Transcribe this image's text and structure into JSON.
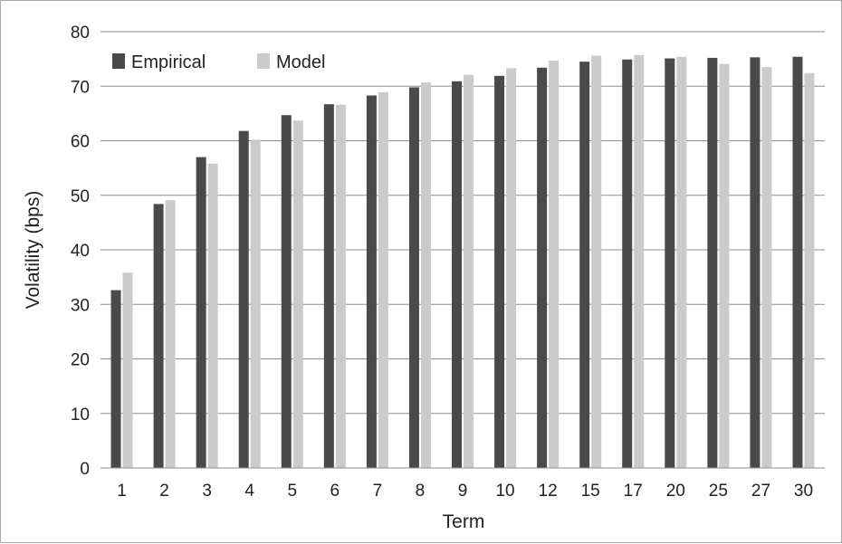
{
  "chart_data": {
    "type": "bar",
    "title": "",
    "xlabel": "Term",
    "ylabel": "Volatility (bps)",
    "ylim": [
      0,
      80
    ],
    "yticks": [
      0,
      10,
      20,
      30,
      40,
      50,
      60,
      70,
      80
    ],
    "grid": true,
    "legend_position": "top-left",
    "categories": [
      "1",
      "2",
      "3",
      "4",
      "5",
      "6",
      "7",
      "8",
      "9",
      "10",
      "12",
      "15",
      "17",
      "20",
      "25",
      "27",
      "30"
    ],
    "series": [
      {
        "name": "Empirical",
        "color": "#4a4a4a",
        "values": [
          32.6,
          48.4,
          57.0,
          61.8,
          64.7,
          66.7,
          68.3,
          69.8,
          70.9,
          71.9,
          73.4,
          74.5,
          74.9,
          75.1,
          75.2,
          75.3,
          75.4
        ]
      },
      {
        "name": "Model",
        "color": "#cbcbcb",
        "values": [
          35.8,
          49.1,
          55.8,
          60.2,
          63.7,
          66.6,
          68.9,
          70.7,
          72.1,
          73.3,
          74.7,
          75.6,
          75.7,
          75.4,
          74.1,
          73.5,
          72.4
        ]
      }
    ]
  }
}
